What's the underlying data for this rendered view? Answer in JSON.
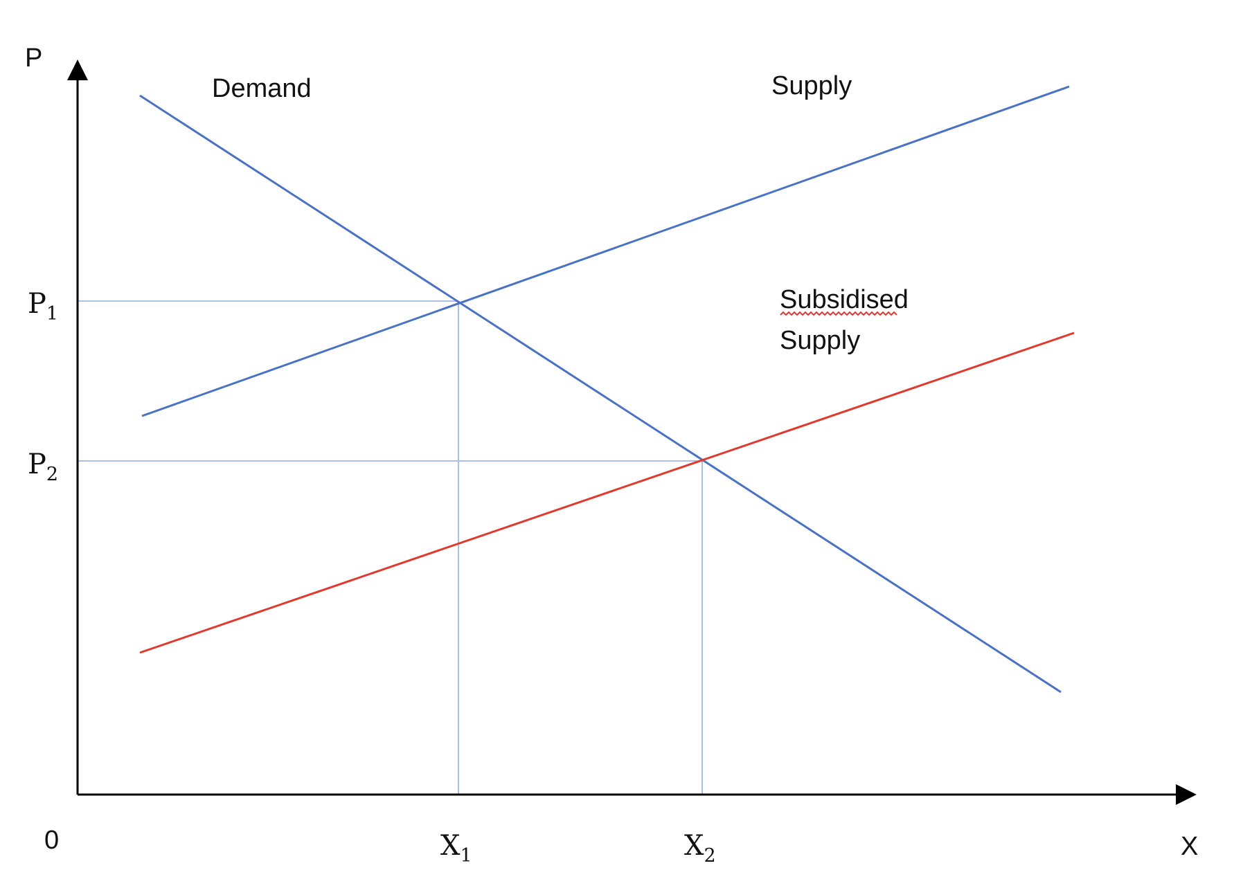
{
  "axes": {
    "y_label": "P",
    "x_label": "X",
    "origin_label": "0"
  },
  "price_levels": [
    {
      "base": "P",
      "sub": "1"
    },
    {
      "base": "P",
      "sub": "2"
    }
  ],
  "quantity_levels": [
    {
      "base": "X",
      "sub": "1"
    },
    {
      "base": "X",
      "sub": "2"
    }
  ],
  "curves": {
    "demand": {
      "label": "Demand",
      "color": "#4a72c4"
    },
    "supply": {
      "label": "Supply",
      "color": "#4a72c4"
    },
    "subsidised_supply": {
      "line1": "Subsidised",
      "line2": "Supply",
      "color": "#e03a2f"
    }
  },
  "guide_color": "#aac0e6",
  "axis_color": "#000000"
}
